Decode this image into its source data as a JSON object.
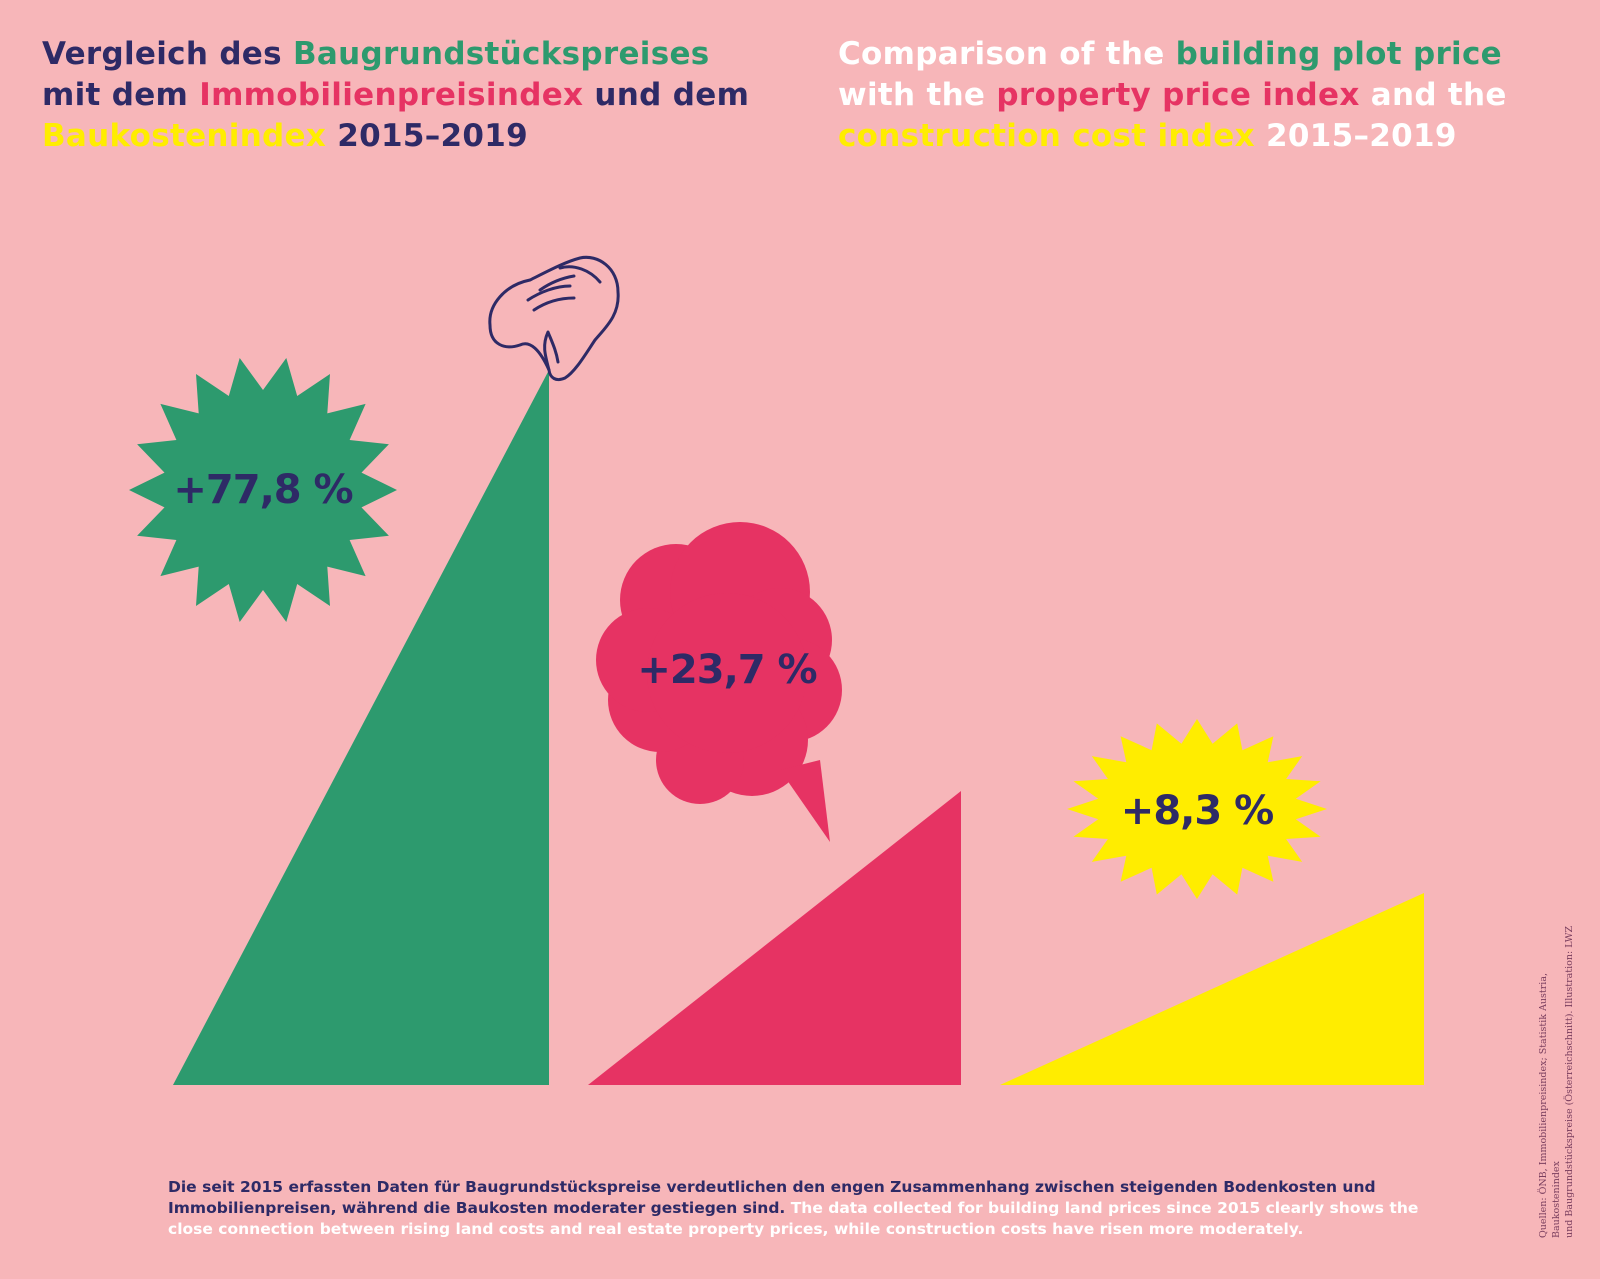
{
  "title_de": {
    "p1": "Vergleich des ",
    "p2": "Baugrundstückspreises",
    "p3": " mit dem ",
    "p4": "Immobilienpreisindex",
    "p5": " und dem ",
    "p6": "Baukostenindex",
    "p7": " 2015–2019"
  },
  "title_en": {
    "p1": "Comparison of the ",
    "p2": "building plot price",
    "p3": " with the ",
    "p4": "property price index",
    "p5": " and the ",
    "p6": "construction cost index",
    "p7": " 2015–2019"
  },
  "colors": {
    "background": "#f7b6b9",
    "text": "#2e2a66",
    "building_plot": "#2d9a6e",
    "property": "#e63363",
    "construction": "#ffed00"
  },
  "chart_data": {
    "type": "bar",
    "categories": [
      "Baugrundstückspreis / building plot price",
      "Immobilienpreisindex / property price index",
      "Baukostenindex / construction cost index"
    ],
    "values": [
      77.8,
      23.7,
      8.3
    ],
    "labels": [
      "+77,8 %",
      "+23,7 %",
      "+8,3 %"
    ],
    "period": "2015–2019"
  },
  "footer": {
    "de": "Die seit 2015 erfassten Daten für Baugrundstückspreise verdeutlichen den engen Zusammenhang zwischen steigenden Bodenkosten und Immobilienpreisen, während die Baukosten moderater gestiegen sind.",
    "en": " The data collected for building land prices since 2015 clearly shows the close connection between rising land costs and real estate property prices, while construction costs have risen more moderately."
  },
  "source": {
    "line1": "Quellen: ÖNB, Immobilienpreisindex; Statistik Austria, Baukostenindex",
    "line2": "und Baugrundstückspreise (Österreichschnitt). Illustration: LWZ"
  },
  "icons": {
    "hand": "pinching-hand-icon"
  }
}
